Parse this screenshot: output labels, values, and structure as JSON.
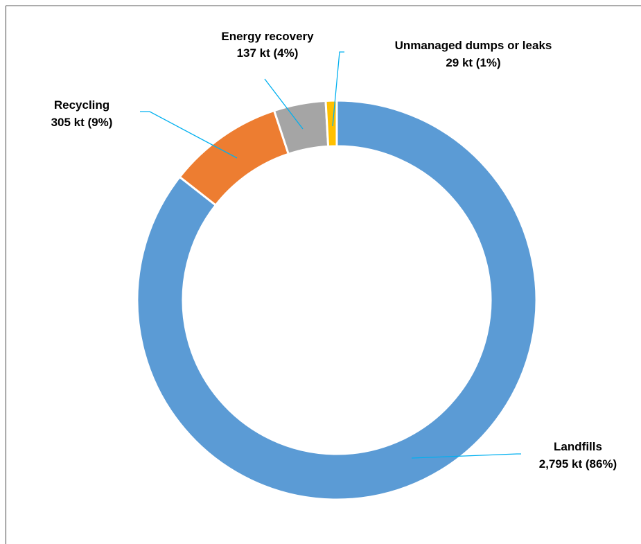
{
  "chart_data": {
    "type": "pie",
    "donut": true,
    "unit": "kt",
    "slices": [
      {
        "name": "Landfills",
        "value": 2795,
        "percent": 86,
        "value_label": "2,795 kt (86%)",
        "color": "#5B9BD5"
      },
      {
        "name": "Recycling",
        "value": 305,
        "percent": 9,
        "value_label": "305 kt (9%)",
        "color": "#ED7D31"
      },
      {
        "name": "Energy recovery",
        "value": 137,
        "percent": 4,
        "value_label": "137 kt (4%)",
        "color": "#A5A5A5"
      },
      {
        "name": "Unmanaged dumps or leaks",
        "value": 29,
        "percent": 1,
        "value_label": "29 kt (1%)",
        "color": "#FFC000"
      }
    ],
    "leader_line_color": "#00B0F0",
    "legend": "none",
    "start": "top",
    "direction": "clockwise"
  }
}
